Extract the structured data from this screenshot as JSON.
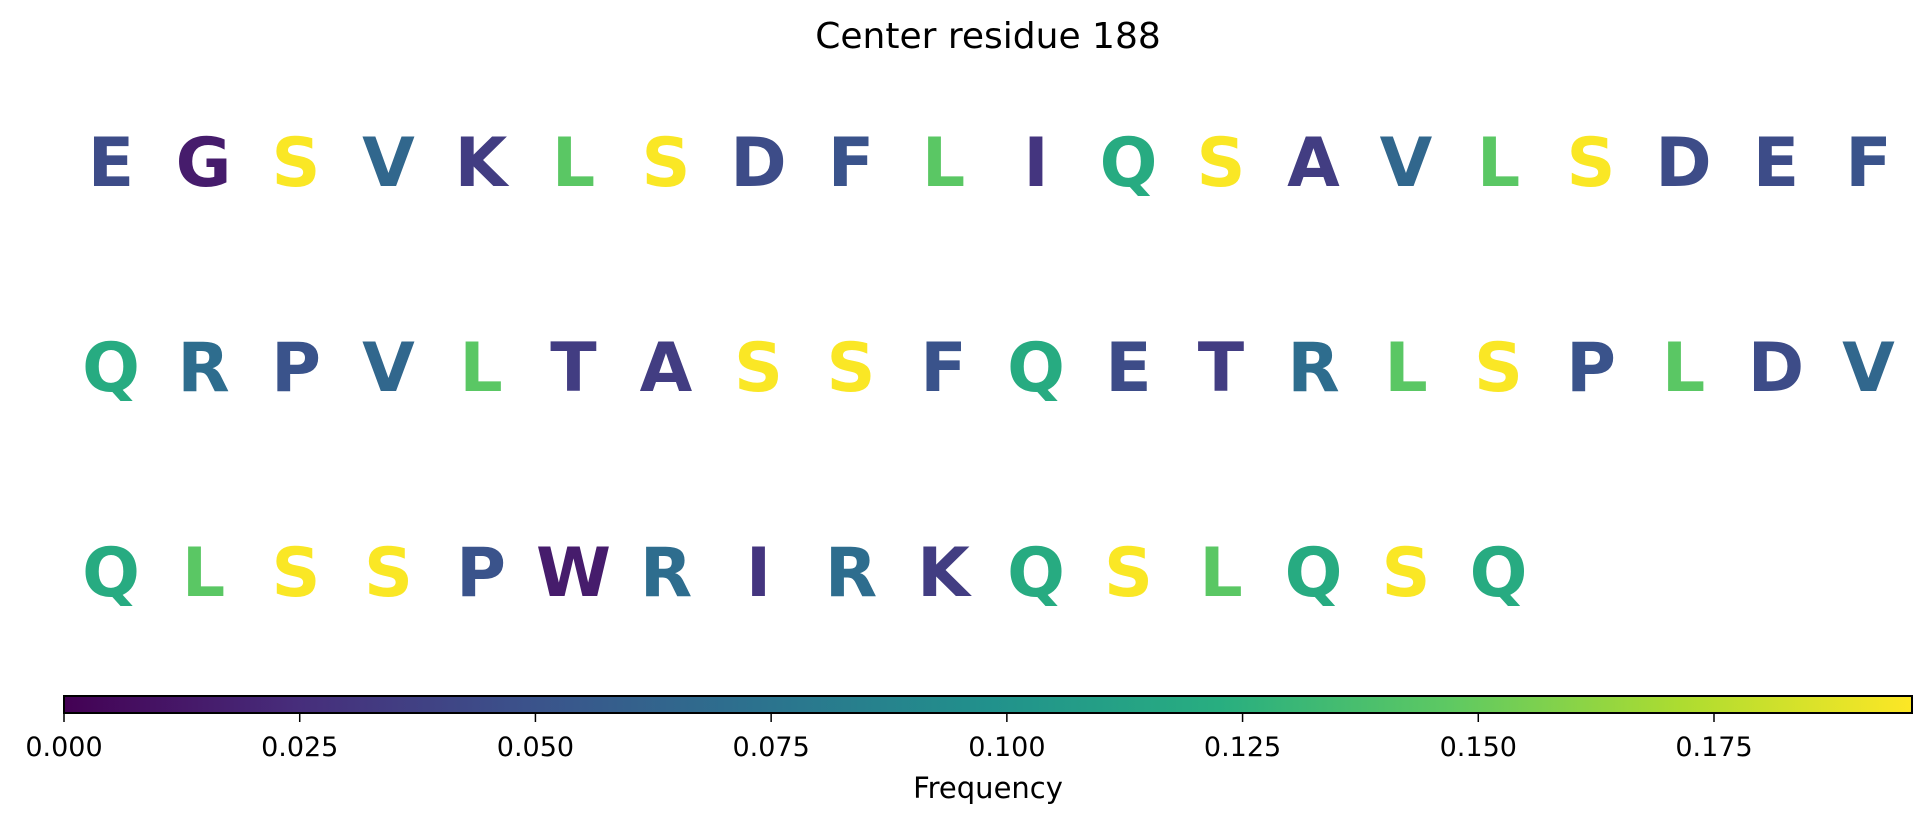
{
  "chart_data": {
    "type": "sequence-logo-heatmap",
    "title": "Center residue 188",
    "rows": [
      {
        "residues": [
          "E",
          "G",
          "S",
          "V",
          "K",
          "L",
          "S",
          "D",
          "F",
          "L",
          "I",
          "Q",
          "S",
          "A",
          "V",
          "L",
          "S",
          "D",
          "E",
          "F"
        ],
        "frequencies": [
          0.045,
          0.015,
          0.195,
          0.065,
          0.035,
          0.145,
          0.195,
          0.045,
          0.05,
          0.145,
          0.03,
          0.12,
          0.195,
          0.035,
          0.065,
          0.145,
          0.195,
          0.045,
          0.045,
          0.05
        ]
      },
      {
        "residues": [
          "Q",
          "R",
          "P",
          "V",
          "L",
          "T",
          "A",
          "S",
          "S",
          "F",
          "Q",
          "E",
          "T",
          "R",
          "L",
          "S",
          "P",
          "L",
          "D",
          "V"
        ],
        "frequencies": [
          0.12,
          0.07,
          0.05,
          0.065,
          0.145,
          0.035,
          0.035,
          0.195,
          0.195,
          0.05,
          0.12,
          0.045,
          0.035,
          0.07,
          0.145,
          0.195,
          0.05,
          0.145,
          0.045,
          0.065
        ]
      },
      {
        "residues": [
          "Q",
          "L",
          "S",
          "S",
          "P",
          "W",
          "R",
          "I",
          "R",
          "K",
          "Q",
          "S",
          "L",
          "Q",
          "S",
          "Q"
        ],
        "frequencies": [
          0.12,
          0.145,
          0.195,
          0.195,
          0.05,
          0.015,
          0.07,
          0.03,
          0.07,
          0.035,
          0.12,
          0.195,
          0.145,
          0.12,
          0.195,
          0.12
        ]
      }
    ],
    "colorbar": {
      "colormap": "viridis",
      "label": "Frequency",
      "min": 0.0,
      "max": 0.196,
      "ticks": [
        0.0,
        0.025,
        0.05,
        0.075,
        0.1,
        0.125,
        0.15,
        0.175
      ],
      "tick_labels": [
        "0.000",
        "0.025",
        "0.050",
        "0.075",
        "0.100",
        "0.125",
        "0.150",
        "0.175"
      ]
    }
  }
}
